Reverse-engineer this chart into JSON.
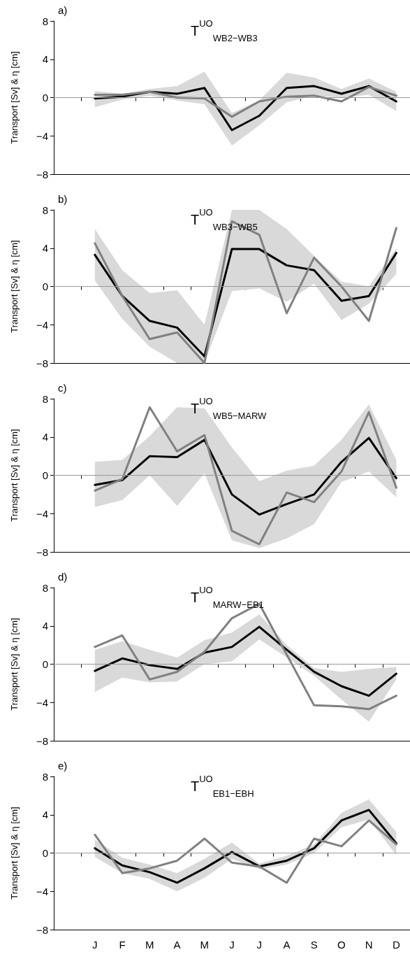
{
  "chart_data": [
    {
      "type": "line",
      "title": "T$^{UO}$$_{WB2−WB3}$",
      "annotations": [
        "a)"
      ],
      "ylabel": "Transport [Sv] & η [cm]",
      "categories": [
        null,
        null,
        null,
        null,
        null,
        null,
        null,
        null,
        null,
        null,
        null,
        null
      ],
      "ylim": [
        -8,
        8
      ],
      "yticks": [
        -8,
        -4,
        0,
        4,
        8
      ],
      "tick_labels": "y",
      "grid": false,
      "marker": "none",
      "line_style": "solid",
      "ref_lines": [
        {
          "axis": "y",
          "value": 0,
          "color": "#999999"
        }
      ],
      "series": [
        {
          "color": "#000000",
          "values": [
            -0.1,
            0.1,
            0.6,
            0.4,
            1.0,
            -3.4,
            -1.9,
            1.0,
            1.2,
            0.4,
            1.2,
            -0.4
          ],
          "lower": [
            -1.0,
            -0.2,
            0.2,
            -0.3,
            -0.7,
            -5.0,
            -2.9,
            -0.5,
            0.2,
            0.0,
            0.3,
            -1.4
          ],
          "upper": [
            0.7,
            0.4,
            0.9,
            1.2,
            2.7,
            -1.6,
            -0.3,
            2.6,
            2.1,
            0.9,
            2.0,
            0.6
          ]
        },
        {
          "color": "#808080",
          "values": [
            0.3,
            0.3,
            0.6,
            0.0,
            -0.1,
            -2.0,
            -0.4,
            0.1,
            0.2,
            -0.4,
            1.1,
            0.2
          ]
        }
      ]
    },
    {
      "type": "line",
      "title": "T$^{UO}$$_{WB3−WB5}$",
      "annotations": [
        "b)"
      ],
      "ylabel": "Transport [Sv] & η [cm]",
      "categories": [
        null,
        null,
        null,
        null,
        null,
        null,
        null,
        null,
        null,
        null,
        null,
        null
      ],
      "ylim": [
        -8,
        8
      ],
      "yticks": [
        -8,
        -4,
        0,
        4,
        8
      ],
      "tick_labels": "y",
      "grid": false,
      "marker": "none",
      "line_style": "solid",
      "ref_lines": [
        {
          "axis": "y",
          "value": 0,
          "color": "#999999"
        }
      ],
      "series": [
        {
          "color": "#000000",
          "values": [
            3.3,
            -1.0,
            -3.6,
            -4.3,
            -7.3,
            3.9,
            3.9,
            2.2,
            1.7,
            -1.5,
            -1.0,
            3.5
          ],
          "lower": [
            0.6,
            -3.4,
            -6.3,
            -8.0,
            -8.0,
            -0.5,
            -0.2,
            -1.6,
            0.3,
            -3.5,
            -1.8,
            1.3
          ],
          "upper": [
            6.0,
            1.7,
            -0.7,
            -0.4,
            -4.0,
            8.0,
            8.0,
            6.0,
            3.2,
            0.5,
            0.0,
            4.0
          ]
        },
        {
          "color": "#808080",
          "values": [
            4.5,
            -1.0,
            -5.5,
            -4.8,
            -8.0,
            6.8,
            5.4,
            -2.8,
            3.0,
            0.0,
            -3.6,
            6.1
          ]
        }
      ]
    },
    {
      "type": "line",
      "title": "T$^{UO}$$_{WB5−MARW}$",
      "annotations": [
        "c)"
      ],
      "ylabel": "Transport [Sv] & η [cm]",
      "categories": [
        null,
        null,
        null,
        null,
        null,
        null,
        null,
        null,
        null,
        null,
        null,
        null
      ],
      "ylim": [
        -8,
        8
      ],
      "yticks": [
        -8,
        -4,
        0,
        4,
        8
      ],
      "tick_labels": "y",
      "grid": false,
      "marker": "none",
      "line_style": "solid",
      "ref_lines": [
        {
          "axis": "y",
          "value": 0,
          "color": "#999999"
        }
      ],
      "series": [
        {
          "color": "#000000",
          "values": [
            -1.0,
            -0.5,
            2.0,
            1.9,
            3.7,
            -2.0,
            -4.1,
            -3.0,
            -2.0,
            1.4,
            3.9,
            -0.3
          ],
          "lower": [
            -3.3,
            -2.6,
            0.0,
            -3.2,
            0.2,
            -6.8,
            -7.6,
            -6.6,
            -5.1,
            -0.7,
            0.4,
            -2.3
          ],
          "upper": [
            1.4,
            1.6,
            4.1,
            7.1,
            7.0,
            2.9,
            -0.6,
            0.5,
            1.0,
            3.7,
            7.4,
            1.6
          ]
        },
        {
          "color": "#808080",
          "values": [
            -1.6,
            -0.4,
            7.1,
            2.5,
            4.2,
            -5.8,
            -7.2,
            -1.8,
            -2.8,
            0.4,
            6.6,
            -1.3
          ]
        }
      ]
    },
    {
      "type": "line",
      "title": "T$^{UO}$$_{MARW−EB1}$",
      "annotations": [
        "d)"
      ],
      "ylabel": "Transport [Sv] & η [cm]",
      "categories": [
        null,
        null,
        null,
        null,
        null,
        null,
        null,
        null,
        null,
        null,
        null,
        null
      ],
      "ylim": [
        -8,
        8
      ],
      "yticks": [
        -8,
        -4,
        0,
        4,
        8
      ],
      "tick_labels": "y",
      "grid": false,
      "marker": "none",
      "line_style": "solid",
      "ref_lines": [
        {
          "axis": "y",
          "value": 0,
          "color": "#999999"
        }
      ],
      "series": [
        {
          "color": "#000000",
          "values": [
            -0.7,
            0.6,
            -0.1,
            -0.5,
            1.2,
            1.8,
            3.9,
            1.5,
            -0.8,
            -2.3,
            -3.3,
            -1.0
          ],
          "lower": [
            -2.9,
            -1.4,
            -1.9,
            -1.8,
            0.0,
            0.3,
            2.6,
            0.7,
            -1.2,
            -3.7,
            -6.0,
            -1.6
          ],
          "upper": [
            1.5,
            2.4,
            1.5,
            0.7,
            2.5,
            3.3,
            5.2,
            2.0,
            -0.4,
            -0.8,
            -0.5,
            -0.3
          ]
        },
        {
          "color": "#808080",
          "values": [
            1.8,
            3.0,
            -1.6,
            -0.8,
            1.3,
            4.8,
            6.3,
            1.0,
            -4.3,
            -4.4,
            -4.7,
            -3.3
          ]
        }
      ]
    },
    {
      "type": "line",
      "title": "T$^{UO}$$_{EB1−EBH}$",
      "annotations": [
        "e)"
      ],
      "ylabel": "Transport [Sv] & η [cm]",
      "categories": [
        "J",
        "F",
        "M",
        "A",
        "M",
        "J",
        "J",
        "A",
        "S",
        "O",
        "N",
        "D"
      ],
      "ylim": [
        -8,
        8
      ],
      "yticks": [
        -8,
        -4,
        0,
        4,
        8
      ],
      "grid": false,
      "marker": "none",
      "line_style": "solid",
      "ref_lines": [
        {
          "axis": "y",
          "value": 0,
          "color": "#999999"
        }
      ],
      "series": [
        {
          "color": "#000000",
          "values": [
            0.5,
            -1.3,
            -2.0,
            -3.1,
            -1.6,
            0.1,
            -1.4,
            -0.8,
            0.5,
            3.4,
            4.5,
            1.0
          ],
          "lower": [
            -0.4,
            -2.1,
            -2.7,
            -4.0,
            -2.6,
            -0.6,
            -1.7,
            -1.2,
            0.0,
            2.7,
            3.5,
            -0.2
          ],
          "upper": [
            1.4,
            -0.5,
            -1.2,
            -2.1,
            -0.6,
            1.1,
            -1.1,
            -0.3,
            0.9,
            4.2,
            5.6,
            2.2
          ]
        },
        {
          "color": "#808080",
          "values": [
            1.9,
            -2.1,
            -1.6,
            -0.8,
            1.5,
            -1.0,
            -1.4,
            -3.1,
            1.5,
            0.7,
            3.4,
            0.9
          ]
        }
      ]
    }
  ]
}
